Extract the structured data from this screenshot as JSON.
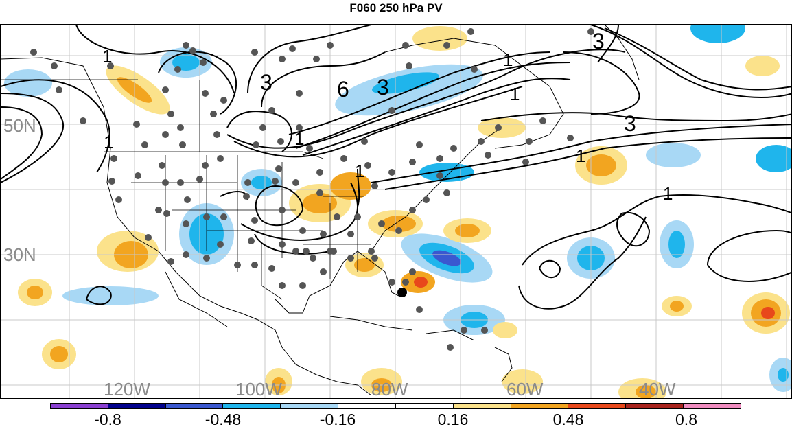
{
  "title": "F060 250 hPa PV",
  "map": {
    "lat_labels": [
      "50N",
      "30N"
    ],
    "lon_labels": [
      "120W",
      "100W",
      "80W",
      "60W",
      "40W"
    ],
    "contour_labels": [
      "1",
      "3",
      "6",
      "3",
      "1",
      "3",
      "1",
      "1",
      "3",
      "1",
      "1",
      "1",
      "1"
    ]
  },
  "colorbar": {
    "colors": [
      "#8a3fd1",
      "#00008b",
      "#3a58d0",
      "#1fb5ec",
      "#a8d8f5",
      "#ffffff",
      "#ffffff",
      "#fbe28b",
      "#f2a520",
      "#e8481b",
      "#a8231d",
      "#f08cc0"
    ],
    "labels": [
      "-0.8",
      "-0.48",
      "-0.16",
      "0.16",
      "0.48",
      "0.8"
    ]
  }
}
